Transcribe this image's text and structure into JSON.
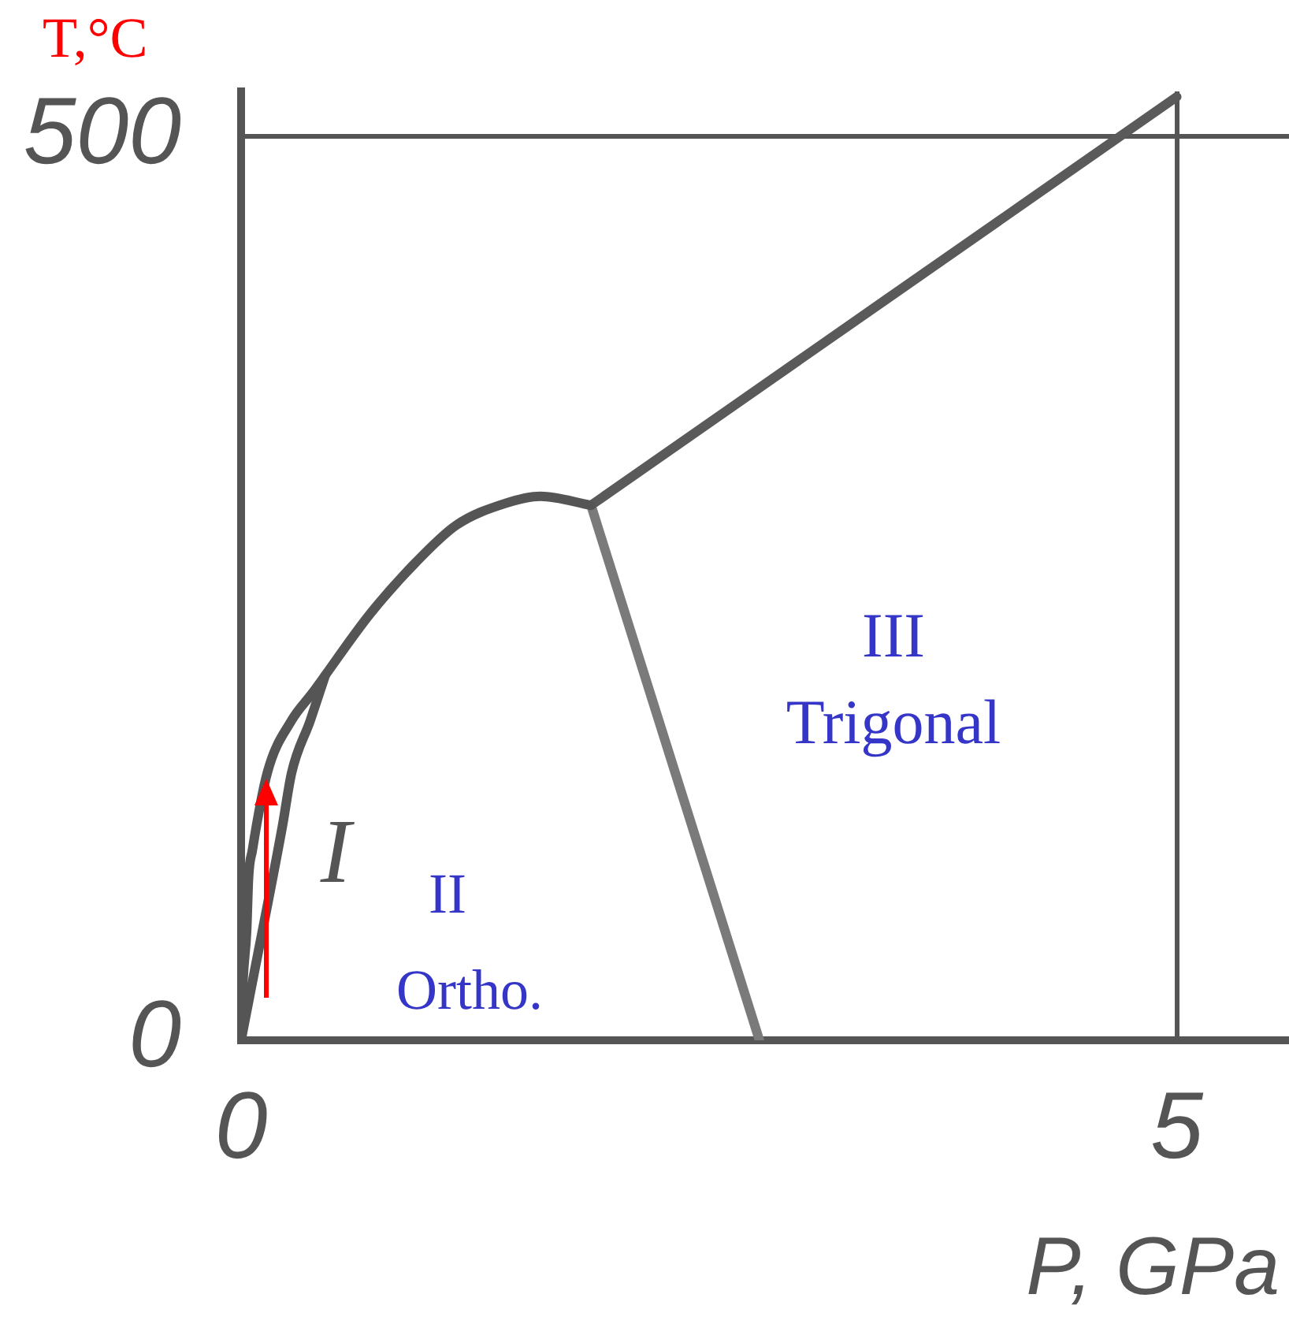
{
  "chart_data": {
    "type": "line",
    "ylabel": "T,°C",
    "xlabel": "P, GPa",
    "xlim": [
      0,
      5.6
    ],
    "ylim": [
      0,
      525
    ],
    "xticks": [
      0,
      5
    ],
    "yticks": [
      0,
      500
    ],
    "grid": true,
    "annotations": [
      "I",
      "II",
      "Ortho.",
      "III",
      "Trigonal"
    ],
    "series": [
      {
        "color": "#555555",
        "x": [
          0,
          0.01,
          0.03,
          0.04,
          0.06,
          0.14,
          0.27,
          0.38,
          0.69,
          0.93,
          1.15,
          1.41,
          1.6,
          1.87
        ],
        "values": [
          0,
          32,
          61,
          90,
          105,
          148,
          177,
          192,
          236,
          264,
          285,
          297,
          301,
          296
        ]
      },
      {
        "color": "#555555",
        "x": [
          0,
          0.06,
          0.22,
          0.27,
          0.37,
          0.45
        ],
        "values": [
          0,
          32,
          118,
          148,
          177,
          202
        ]
      },
      {
        "color": "#5a5a5a",
        "x": [
          1.87,
          5.0
        ],
        "values": [
          296,
          522
        ]
      },
      {
        "color": "#7a7a7a",
        "x": [
          1.87,
          2.77
        ],
        "values": [
          296,
          0
        ]
      }
    ]
  }
}
